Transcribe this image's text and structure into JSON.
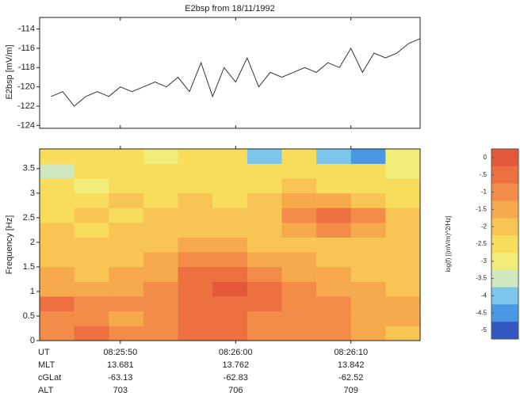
{
  "chart_data": [
    {
      "type": "line",
      "title": "E2bsp from 18/11/1992",
      "ylabel": "E2bsp [mV/m]",
      "color": "#333333",
      "x": [
        "08:25:44",
        "08:25:45",
        "08:25:46",
        "08:25:47",
        "08:25:48",
        "08:25:49",
        "08:25:50",
        "08:25:51",
        "08:25:52",
        "08:25:53",
        "08:25:54",
        "08:25:55",
        "08:25:56",
        "08:25:57",
        "08:25:58",
        "08:25:59",
        "08:26:00",
        "08:26:01",
        "08:26:02",
        "08:26:03",
        "08:26:04",
        "08:26:05",
        "08:26:06",
        "08:26:07",
        "08:26:08",
        "08:26:09",
        "08:26:10",
        "08:26:11",
        "08:26:12",
        "08:26:13",
        "08:26:14",
        "08:26:15",
        "08:26:16"
      ],
      "values": [
        -121,
        -120.5,
        -122,
        -121,
        -120.5,
        -121,
        -120,
        -120.5,
        -120,
        -119.5,
        -120,
        -119,
        -120.5,
        -117.5,
        -121,
        -118,
        -119.5,
        -117,
        -120,
        -118.5,
        -119,
        -118.5,
        -118,
        -118.5,
        -117.5,
        -118,
        -116,
        -118.5,
        -116.5,
        -117,
        -116.5,
        -115.5,
        -115
      ],
      "xlim": [
        "08:25:43",
        "08:26:16"
      ],
      "xticks": [
        "08:25:50",
        "08:26:00",
        "08:26:10"
      ],
      "ylim": [
        -124.3,
        -112.8
      ],
      "yticks": [
        -114,
        -116,
        -118,
        -120,
        -122,
        -124
      ]
    },
    {
      "type": "heatmap",
      "ylabel": "Frequency [Hz]",
      "x_label": "UT",
      "xbins": [
        "08:25:43",
        "08:25:46",
        "08:25:49",
        "08:25:52",
        "08:25:55",
        "08:25:58",
        "08:26:01",
        "08:26:04",
        "08:26:07",
        "08:26:10",
        "08:26:13",
        "08:26:16"
      ],
      "ybins": [
        0,
        0.3,
        0.6,
        0.9,
        1.2,
        1.5,
        1.8,
        2.1,
        2.4,
        2.7,
        3.0,
        3.3,
        3.6,
        3.9
      ],
      "values": [
        [
          -1,
          -0.5,
          -1,
          -1,
          -0.5,
          -0.5,
          -1,
          -1,
          -1,
          -1.5,
          -2
        ],
        [
          -1,
          -1,
          -1.5,
          -1,
          -0.5,
          -0.5,
          -1,
          -1,
          -1,
          -1.5,
          -1.5
        ],
        [
          -0.5,
          -1,
          -1,
          -1,
          -0.5,
          -0.5,
          -0.5,
          -1,
          -1,
          -1.5,
          -1.5
        ],
        [
          -1.5,
          -1.5,
          -1.5,
          -1,
          -0.5,
          0,
          -0.5,
          -1,
          -1.5,
          -1.5,
          -2
        ],
        [
          -1.5,
          -2,
          -1.5,
          -1.5,
          -0.5,
          -0.5,
          -1,
          -1.5,
          -1.5,
          -2,
          -2
        ],
        [
          -2,
          -2,
          -2,
          -1.5,
          -1,
          -1,
          -1.5,
          -1.5,
          -2,
          -2,
          -2
        ],
        [
          -2,
          -2,
          -2,
          -2,
          -1.5,
          -1.5,
          -2,
          -2,
          -2,
          -2,
          -2
        ],
        [
          -2,
          -2.5,
          -2,
          -2,
          -2,
          -2,
          -2,
          -1.5,
          -1,
          -1.5,
          -2
        ],
        [
          -2.5,
          -2,
          -2.5,
          -2,
          -2,
          -2,
          -2,
          -1,
          -0.5,
          -1,
          -2
        ],
        [
          -2.5,
          -2.5,
          -2,
          -2.5,
          -2,
          -2.5,
          -2,
          -1.5,
          -1.5,
          -2,
          -2.5
        ],
        [
          -2.5,
          -3,
          -2.5,
          -2.5,
          -2.5,
          -2.5,
          -2.5,
          -2,
          -2.5,
          -2.5,
          -2.5
        ],
        [
          -3.5,
          -2.5,
          -2.5,
          -2.5,
          -2.5,
          -2.5,
          -2.5,
          -2.5,
          -2.5,
          -2.5,
          -3
        ],
        [
          -2.5,
          -2.5,
          -2.5,
          -3,
          -2.5,
          -2.5,
          -4,
          -2.5,
          -4,
          -4.5,
          -3
        ]
      ],
      "xlim": [
        "08:25:43",
        "08:26:16"
      ],
      "xticks": [
        "08:25:50",
        "08:26:00",
        "08:26:10"
      ],
      "ylim": [
        0,
        3.9
      ],
      "yticks": [
        0,
        0.5,
        1,
        1.5,
        2,
        2.5,
        3,
        3.5
      ],
      "extra_rows": [
        {
          "name": "MLT",
          "values": [
            13.681,
            13.762,
            13.842
          ]
        },
        {
          "name": "cGLat",
          "values": [
            -63.13,
            -62.83,
            -62.52
          ]
        },
        {
          "name": "ALT",
          "values": [
            703,
            706,
            709
          ]
        }
      ],
      "colorbar": {
        "label": "log(f) [(mV/m)^2/Hz]",
        "zlim": [
          0.25,
          -5.25
        ],
        "colors": [
          "#e4583a",
          "#ec7040",
          "#f28c48",
          "#f6aa4c",
          "#f8c454",
          "#f8dc5c",
          "#f2ec78",
          "#cfe8c0",
          "#7cc6ec",
          "#4a98e4",
          "#3058c0"
        ],
        "ticks": [
          0,
          {
            "value": -0.5,
            "label": "-.5"
          },
          -1,
          -1.5,
          -2,
          -2.5,
          -3,
          -3.5,
          -4,
          -4.5,
          -5
        ]
      }
    }
  ]
}
